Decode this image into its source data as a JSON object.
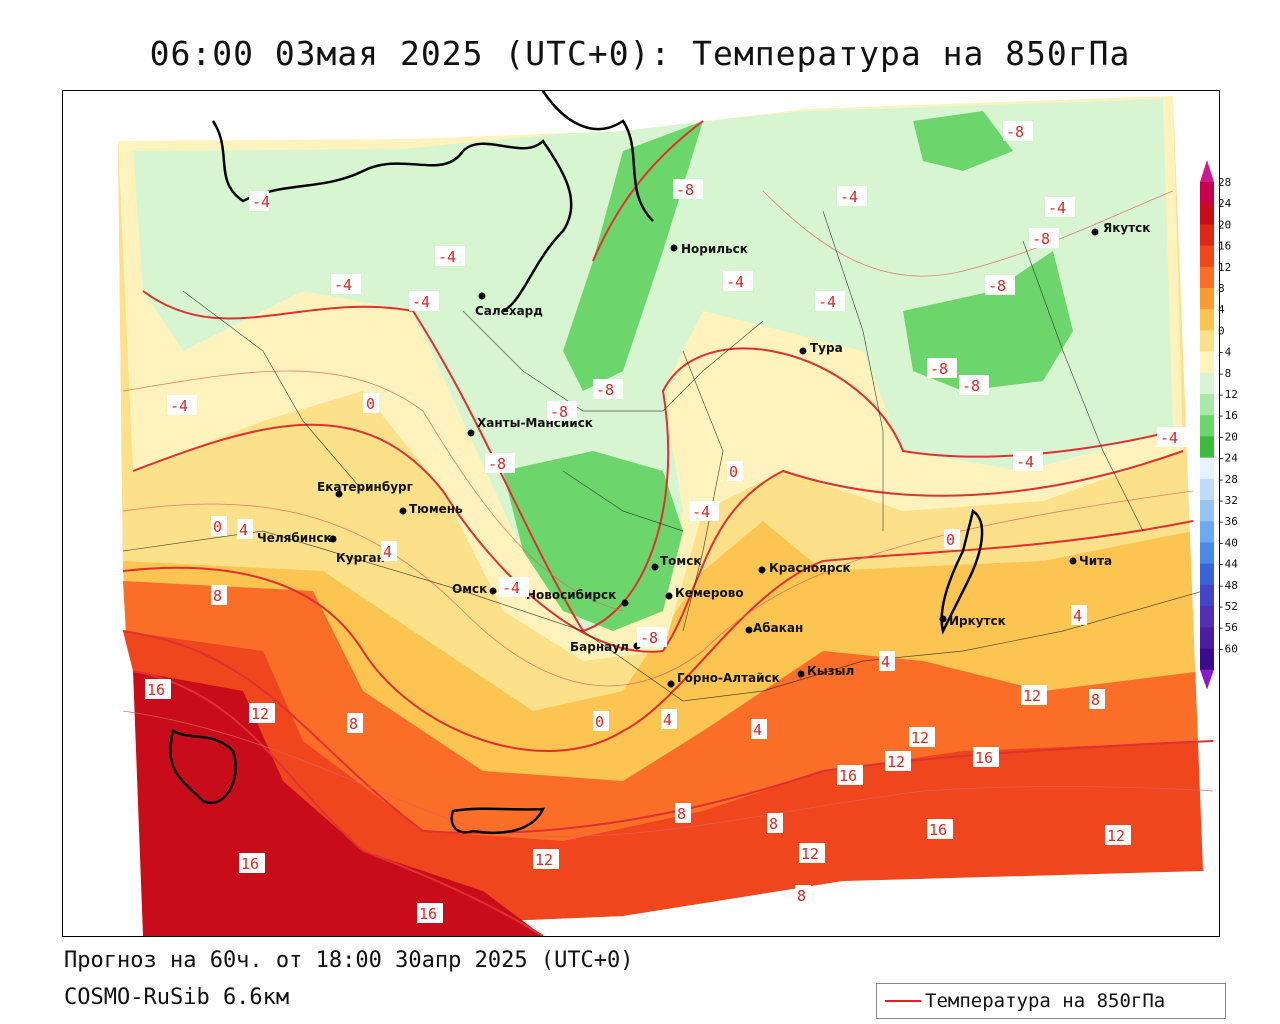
{
  "title": "06:00 03мая 2025 (UTC+0): Температура на 850гПа",
  "footer": {
    "forecast": "Прогноз на 60ч. от 18:00 30апр 2025 (UTC+0)",
    "model": "COSMO-RuSib 6.6км"
  },
  "legend": {
    "label": "Температура на 850гПа"
  },
  "colorbar": {
    "ticks": [
      "28",
      "24",
      "20",
      "16",
      "12",
      "8",
      "4",
      "0",
      "-4",
      "-8",
      "-12",
      "-16",
      "-20",
      "-24",
      "-28",
      "-32",
      "-36",
      "-40",
      "-44",
      "-48",
      "-52",
      "-56",
      "-60"
    ],
    "colors": [
      "#c8004b",
      "#c80c1a",
      "#dc2814",
      "#f0461e",
      "#fa6e28",
      "#fa9a32",
      "#fcc450",
      "#fde08a",
      "#fef3bc",
      "#d8f5d2",
      "#a8e8a8",
      "#6cd66c",
      "#3cba3c",
      "#e8f2ff",
      "#c0dcfa",
      "#98c4f4",
      "#6ea8ee",
      "#4a8ae4",
      "#3a64d8",
      "#4444c8",
      "#5030b4",
      "#4a1ea0",
      "#3c0c8c"
    ],
    "top_arrow_color": "#d01a8c",
    "bottom_arrow_color": "#8a1ad0"
  },
  "cities": [
    {
      "name": "Якутск"
    },
    {
      "name": "Норильск"
    },
    {
      "name": "Салехард"
    },
    {
      "name": "Тура"
    },
    {
      "name": "Ханты-Мансийск"
    },
    {
      "name": "Екатеринбург"
    },
    {
      "name": "Тюмень"
    },
    {
      "name": "Челябинск"
    },
    {
      "name": "Курган"
    },
    {
      "name": "Омск"
    },
    {
      "name": "Новосибирск"
    },
    {
      "name": "Томск"
    },
    {
      "name": "Кемерово"
    },
    {
      "name": "Барнаул"
    },
    {
      "name": "Красноярск"
    },
    {
      "name": "Абакан"
    },
    {
      "name": "Горно-Алтайск"
    },
    {
      "name": "Кызыл"
    },
    {
      "name": "Иркутск"
    },
    {
      "name": "Чита"
    }
  ],
  "isotherm_labels": [
    "-4",
    "-8",
    "0",
    "4",
    "8",
    "12",
    "16"
  ]
}
